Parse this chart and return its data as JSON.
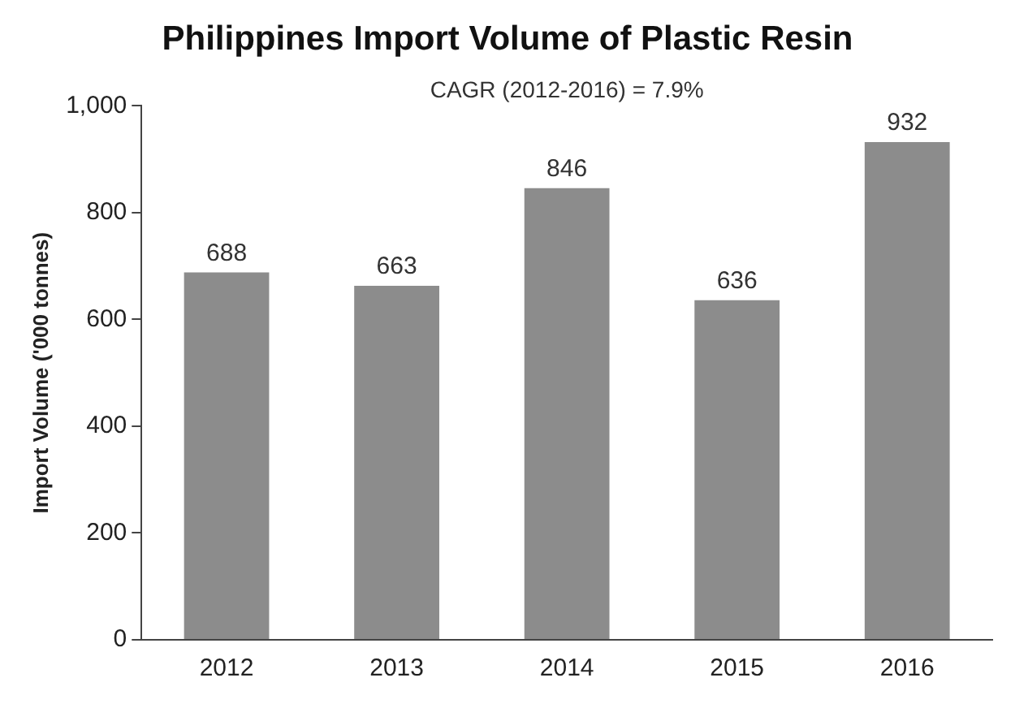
{
  "chart_data": {
    "type": "bar",
    "title": "Philippines Import Volume of Plastic Resin",
    "ylabel": "Import Volume ('000 tonnes)",
    "annotations": [
      "CAGR (2012-2016) = 7.9%"
    ],
    "categories": [
      "2012",
      "2013",
      "2014",
      "2015",
      "2016"
    ],
    "values": [
      688,
      663,
      846,
      636,
      932
    ],
    "color": "#8c8c8c",
    "ylim": [
      0,
      1000
    ],
    "yticks": [
      {
        "value": 0,
        "label": "0"
      },
      {
        "value": 200,
        "label": "200"
      },
      {
        "value": 400,
        "label": "400"
      },
      {
        "value": 600,
        "label": "600"
      },
      {
        "value": 800,
        "label": "800"
      },
      {
        "value": 1000,
        "label": "1,000"
      }
    ],
    "data_labels": true,
    "grid": false,
    "legend": false
  }
}
